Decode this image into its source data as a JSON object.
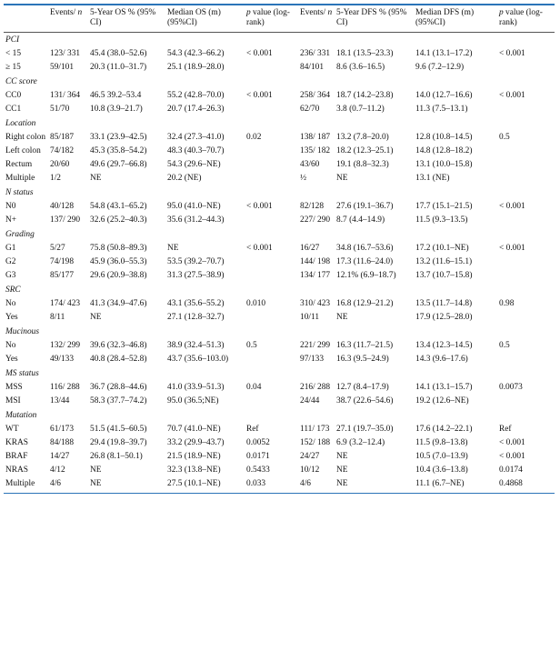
{
  "headers": [
    "",
    "Events/ n",
    "5-Year OS % (95% CI)",
    "Median OS (m) (95%CI)",
    "p value (log-rank)",
    "Events/ n",
    "5-Year DFS % (95% CI)",
    "Median DFS (m) (95%CI)",
    "p value (log-rank)"
  ],
  "sections": [
    {
      "name": "PCI",
      "rows": [
        [
          "< 15",
          "123/ 331",
          "45.4 (38.0–52.6)",
          "54.3 (42.3–66.2)",
          "< 0.001",
          "236/ 331",
          "18.1 (13.5–23.3)",
          "14.1 (13.1–17.2)",
          "< 0.001"
        ],
        [
          "≥ 15",
          "59/101",
          "20.3 (11.0–31.7)",
          "25.1 (18.9–28.0)",
          "",
          "84/101",
          "8.6 (3.6–16.5)",
          "9.6 (7.2–12.9)",
          ""
        ]
      ]
    },
    {
      "name": "CC score",
      "rows": [
        [
          "CC0",
          "131/ 364",
          "46.5 39.2–53.4",
          "55.2 (42.8–70.0)",
          "< 0.001",
          "258/ 364",
          "18.7 (14.2–23.8)",
          "14.0 (12.7–16.6)",
          "< 0.001"
        ],
        [
          "CC1",
          "51/70",
          "10.8 (3.9–21.7)",
          "20.7 (17.4–26.3)",
          "",
          "62/70",
          "3.8 (0.7–11.2)",
          "11.3 (7.5–13.1)",
          ""
        ]
      ]
    },
    {
      "name": "Location",
      "rows": [
        [
          "Right colon",
          "85/187",
          "33.1 (23.9–42.5)",
          "32.4 (27.3–41.0)",
          "0.02",
          "138/ 187",
          "13.2 (7.8–20.0)",
          "12.8 (10.8–14.5)",
          "0.5"
        ],
        [
          "Left colon",
          "74/182",
          "45.3 (35.8–54.2)",
          "48.3 (40.3–70.7)",
          "",
          "135/ 182",
          "18.2 (12.3–25.1)",
          "14.8 (12.8–18.2)",
          ""
        ],
        [
          "Rectum",
          "20/60",
          "49.6 (29.7–66.8)",
          "54.3 (29.6–NE)",
          "",
          "43/60",
          "19.1 (8.8–32.3)",
          "13.1 (10.0–15.8)",
          ""
        ],
        [
          "Multiple",
          "1/2",
          "NE",
          "20.2 (NE)",
          "",
          "½",
          "NE",
          "13.1 (NE)",
          ""
        ]
      ]
    },
    {
      "name": "N status",
      "rows": [
        [
          "N0",
          "40/128",
          "54.8 (43.1–65.2)",
          "95.0 (41.0–NE)",
          "< 0.001",
          "82/128",
          "27.6 (19.1–36.7)",
          "17.7 (15.1–21.5)",
          "< 0.001"
        ],
        [
          "N+",
          "137/ 290",
          "32.6 (25.2–40.3)",
          "35.6 (31.2–44.3)",
          "",
          "227/ 290",
          "8.7 (4.4–14.9)",
          "11.5 (9.3–13.5)",
          ""
        ]
      ]
    },
    {
      "name": "Grading",
      "rows": [
        [
          "G1",
          "5/27",
          "75.8 (50.8–89.3)",
          "NE",
          "< 0.001",
          "16/27",
          "34.8 (16.7–53.6)",
          "17.2 (10.1–NE)",
          "< 0.001"
        ],
        [
          "G2",
          "74/198",
          "45.9 (36.0–55.3)",
          "53.5 (39.2–70.7)",
          "",
          "144/ 198",
          "17.3 (11.6–24.0)",
          "13.2 (11.6–15.1)",
          ""
        ],
        [
          "G3",
          "85/177",
          "29.6 (20.9–38.8)",
          "31.3 (27.5–38.9)",
          "",
          "134/ 177",
          "12.1% (6.9–18.7)",
          "13.7 (10.7–15.8)",
          ""
        ]
      ]
    },
    {
      "name": "SRC",
      "rows": [
        [
          "No",
          "174/ 423",
          "41.3 (34.9–47.6)",
          "43.1 (35.6–55.2)",
          "0.010",
          "310/ 423",
          "16.8 (12.9–21.2)",
          "13.5 (11.7–14.8)",
          "0.98"
        ],
        [
          "Yes",
          "8/11",
          "NE",
          "27.1 (12.8–32.7)",
          "",
          "10/11",
          "NE",
          "17.9 (12.5–28.0)",
          ""
        ]
      ]
    },
    {
      "name": "Mucinous",
      "rows": [
        [
          "No",
          "132/ 299",
          "39.6 (32.3–46.8)",
          "38.9 (32.4–51.3)",
          "0.5",
          "221/ 299",
          "16.3 (11.7–21.5)",
          "13.4 (12.3–14.5)",
          "0.5"
        ],
        [
          "Yes",
          "49/133",
          "40.8 (28.4–52.8)",
          "43.7 (35.6–103.0)",
          "",
          "97/133",
          "16.3 (9.5–24.9)",
          "14.3 (9.6–17.6)",
          ""
        ]
      ]
    },
    {
      "name": "MS status",
      "rows": [
        [
          "MSS",
          "116/ 288",
          "36.7 (28.8–44.6)",
          "41.0 (33.9–51.3)",
          "0.04",
          "216/ 288",
          "12.7 (8.4–17.9)",
          "14.1 (13.1–15.7)",
          "0.0073"
        ],
        [
          "MSI",
          "13/44",
          "58.3 (37.7–74.2)",
          "95.0 (36.5;NE)",
          "",
          "24/44",
          "38.7 (22.6–54.6)",
          "19.2 (12.6–NE)",
          ""
        ]
      ]
    },
    {
      "name": "Mutation",
      "rows": [
        [
          "WT",
          "61/173",
          "51.5 (41.5–60.5)",
          "70.7 (41.0–NE)",
          "Ref",
          "111/ 173",
          "27.1 (19.7–35.0)",
          "17.6 (14.2–22.1)",
          "Ref"
        ],
        [
          "KRAS",
          "84/188",
          "29.4 (19.8–39.7)",
          "33.2 (29.9–43.7)",
          "0.0052",
          "152/ 188",
          "6.9 (3.2–12.4)",
          "11.5 (9.8–13.8)",
          "< 0.001"
        ],
        [
          "BRAF",
          "14/27",
          "26.8 (8.1–50.1)",
          "21.5 (18.9–NE)",
          "0.0171",
          "24/27",
          "NE",
          "10.5 (7.0–13.9)",
          "< 0.001"
        ],
        [
          "NRAS",
          "4/12",
          "NE",
          "32.3 (13.8–NE)",
          "0.5433",
          "10/12",
          "NE",
          "10.4 (3.6–13.8)",
          "0.0174"
        ],
        [
          "Multiple",
          "4/6",
          "NE",
          "27.5 (10.1–NE)",
          "0.033",
          "4/6",
          "NE",
          "11.1 (6.7–NE)",
          "0.4868"
        ]
      ]
    }
  ]
}
